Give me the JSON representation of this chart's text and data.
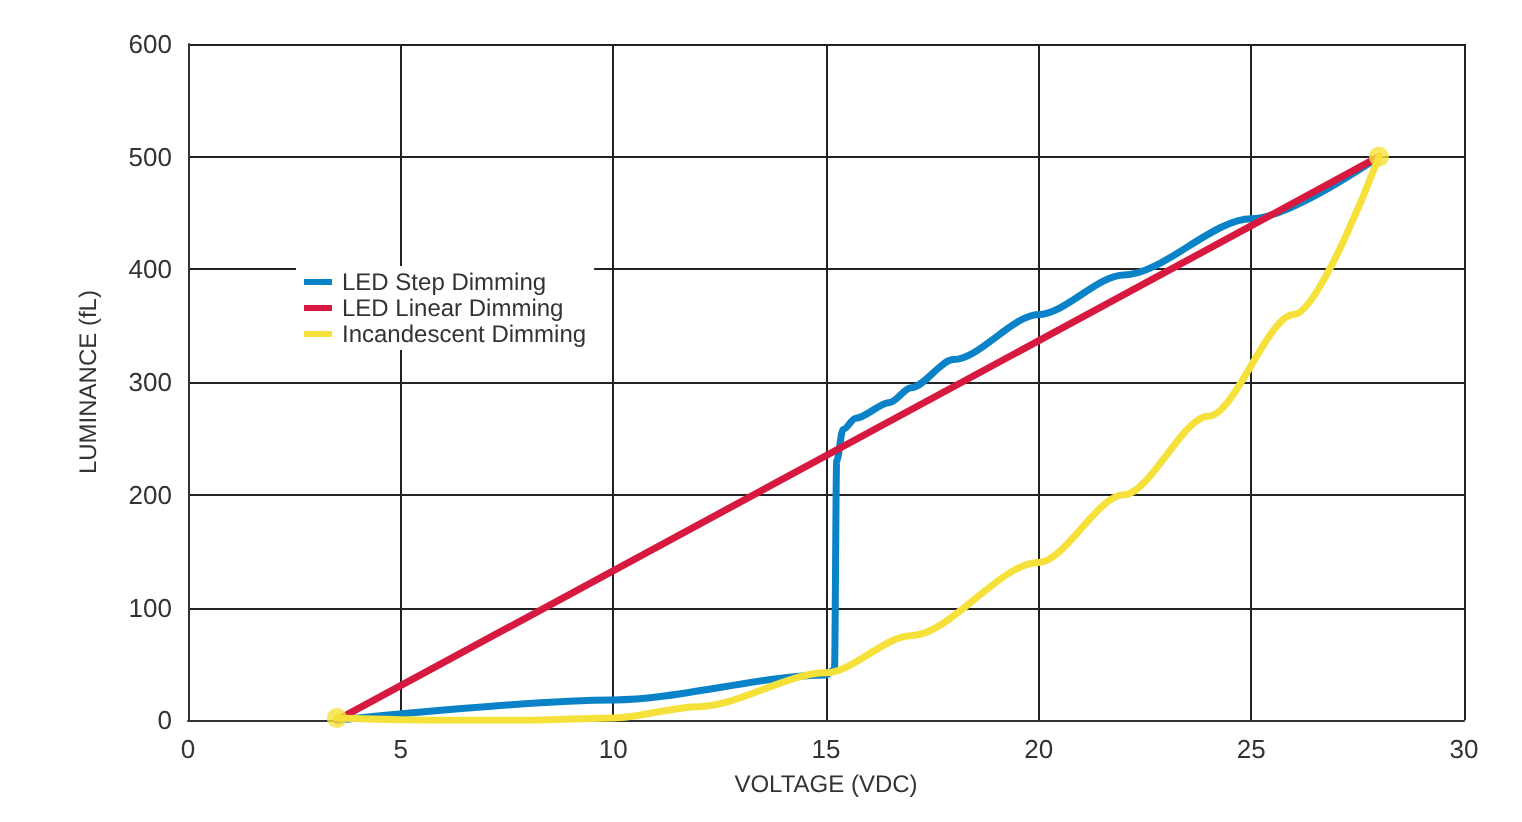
{
  "chart_data": {
    "type": "line",
    "xlabel": "VOLTAGE (VDC)",
    "ylabel": "LUMINANCE (fL)",
    "xlim": [
      0,
      30
    ],
    "xticks": [
      0,
      5,
      10,
      15,
      20,
      25,
      30
    ],
    "ylim": [
      0,
      600
    ],
    "yticks": [
      0,
      100,
      200,
      300,
      400,
      500,
      600
    ],
    "grid": true,
    "legend": "top left",
    "series": [
      {
        "name": "LED Step Dimming",
        "color": "#0a82c8",
        "x": [
          3.5,
          10,
          15,
          15.2,
          15.25,
          15.4,
          15.7,
          16.5,
          17,
          18,
          20,
          22,
          25,
          28
        ],
        "values": [
          0,
          18,
          40,
          45,
          230,
          258,
          268,
          282,
          295,
          320,
          360,
          395,
          445,
          500
        ]
      },
      {
        "name": "LED Linear Dimming",
        "color": "#d8193f",
        "x": [
          3.5,
          28
        ],
        "values": [
          0,
          500
        ]
      },
      {
        "name": "Incandescent Dimming",
        "color": "#f5e13a",
        "x": [
          3.5,
          6,
          8,
          10,
          12,
          15,
          17,
          20,
          22,
          24,
          26,
          28
        ],
        "values": [
          2,
          0,
          0,
          2,
          12,
          42,
          75,
          140,
          200,
          270,
          360,
          500
        ]
      },
      {
        "type": "scatter",
        "color": "#f5e13a",
        "x": [
          3.5,
          28
        ],
        "values": [
          2,
          500
        ]
      }
    ]
  }
}
